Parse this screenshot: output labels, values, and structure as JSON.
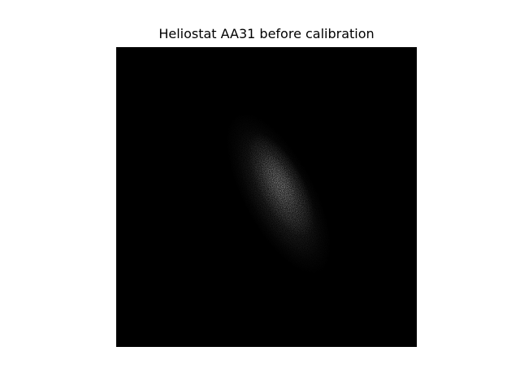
{
  "figure": {
    "title": "Heliostat AA31 before calibration",
    "background_color": "#000000",
    "foreground_color": "#ffffff"
  }
}
